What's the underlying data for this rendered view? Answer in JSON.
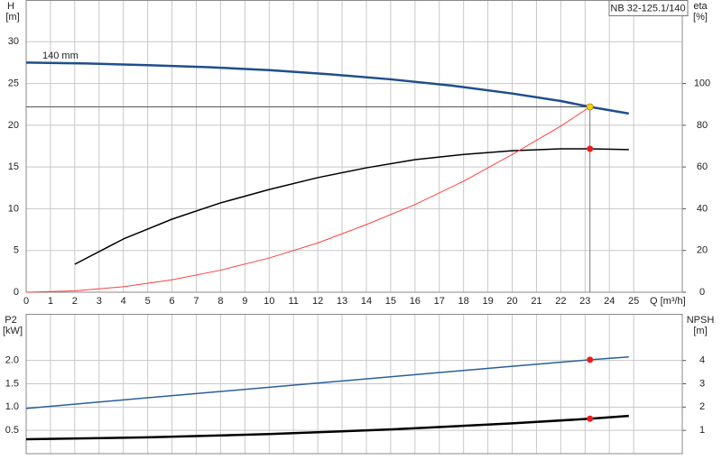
{
  "chart_data": [
    {
      "type": "line",
      "title": "NB 32-125.1/140",
      "annotation": "140 mm",
      "y_label": "H",
      "y_unit": "[m]",
      "y2_label": "eta",
      "y2_unit": "[%]",
      "x_label": "Q [m³/h]",
      "xlim": [
        0,
        27
      ],
      "xticks": [
        0,
        1,
        2,
        3,
        4,
        5,
        6,
        7,
        8,
        9,
        10,
        11,
        12,
        13,
        14,
        15,
        16,
        17,
        18,
        19,
        20,
        21,
        22,
        23,
        24,
        25
      ],
      "ylim": [
        0,
        35
      ],
      "yticks": [
        0,
        5,
        10,
        15,
        20,
        25,
        30
      ],
      "y2lim": [
        0,
        140
      ],
      "y2ticks": [
        0,
        20,
        40,
        60,
        80,
        100
      ],
      "grid": true,
      "series": [
        {
          "color": "#1f4e8c",
          "width": 2.5,
          "axis": "y",
          "x": [
            0,
            2.5,
            5,
            7.5,
            10,
            12.5,
            15,
            17.5,
            20,
            22,
            23.2,
            24.8
          ],
          "values": [
            27.5,
            27.4,
            27.2,
            26.95,
            26.6,
            26.1,
            25.5,
            24.75,
            23.8,
            22.9,
            22.2,
            21.4
          ]
        },
        {
          "color": "#000000",
          "width": 1.5,
          "axis": "y2",
          "x": [
            2,
            4,
            6,
            8,
            10,
            12,
            14,
            16,
            18,
            20,
            22,
            23.2,
            24.8
          ],
          "values": [
            13.4,
            25.5,
            35,
            42.8,
            49.2,
            54.9,
            59.6,
            63.5,
            66,
            67.8,
            68.7,
            68.7,
            68.3
          ]
        },
        {
          "color": "#ff4040",
          "width": 1,
          "axis": "y",
          "x": [
            0,
            2,
            4,
            6,
            8,
            10,
            12,
            14,
            16,
            18,
            20,
            22,
            23.2
          ],
          "values": [
            0,
            0.16,
            0.66,
            1.48,
            2.64,
            4.1,
            5.9,
            8.1,
            10.5,
            13.3,
            16.5,
            19.9,
            22.2
          ]
        }
      ],
      "markers": [
        {
          "x": 23.2,
          "y": 22.2,
          "axis": "y",
          "color": "#f5d300",
          "guides": true
        },
        {
          "x": 23.2,
          "y": 68.7,
          "axis": "y2",
          "color": "#ee1c1c",
          "guides": false
        }
      ]
    },
    {
      "type": "line",
      "y_label": "P2",
      "y_unit": "[kW]",
      "y2_label": "NPSH",
      "y2_unit": "[m]",
      "xlim": [
        0,
        27
      ],
      "xticks": [
        0,
        1,
        2,
        3,
        4,
        5,
        6,
        7,
        8,
        9,
        10,
        11,
        12,
        13,
        14,
        15,
        16,
        17,
        18,
        19,
        20,
        21,
        22,
        23,
        24,
        25
      ],
      "xtick_labels": false,
      "ylim": [
        0,
        3
      ],
      "yticks": [
        0.5,
        {
          "value": 1,
          "label": "1.0"
        },
        1.5,
        {
          "value": 2,
          "label": "2.0"
        }
      ],
      "y2lim": [
        0,
        6
      ],
      "y2ticks": [
        1,
        2,
        3,
        4
      ],
      "grid": true,
      "series": [
        {
          "color": "#000000",
          "width": 2.5,
          "axis": "y",
          "x": [
            0,
            5,
            10,
            15,
            20,
            23.2,
            24.8
          ],
          "values": [
            0.31,
            0.35,
            0.42,
            0.52,
            0.65,
            0.75,
            0.81
          ]
        },
        {
          "color": "#2a5f9a",
          "width": 1.5,
          "axis": "y2",
          "x": [
            0,
            5,
            10,
            15,
            20,
            23.2,
            24.8
          ],
          "values": [
            1.94,
            2.4,
            2.85,
            3.3,
            3.75,
            4.03,
            4.15
          ]
        }
      ],
      "markers": [
        {
          "x": 23.2,
          "y": 0.75,
          "axis": "y",
          "color": "#ee1c1c",
          "guides": false
        },
        {
          "x": 23.2,
          "y": 4.03,
          "axis": "y2",
          "color": "#ee1c1c",
          "guides": false
        }
      ]
    }
  ]
}
